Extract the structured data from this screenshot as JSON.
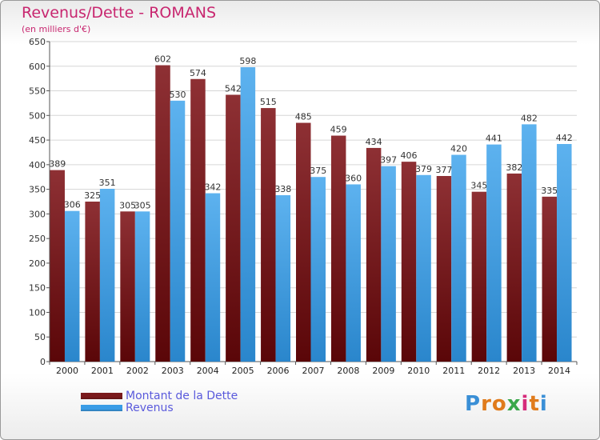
{
  "header": {
    "title": "Revenus/Dette - ROMANS",
    "subtitle": "(en milliers d'€)"
  },
  "chart_data": {
    "type": "bar",
    "title": "Revenus/Dette - ROMANS",
    "subtitle": "(en milliers d'€)",
    "categories": [
      "2000",
      "2001",
      "2002",
      "2003",
      "2004",
      "2005",
      "2006",
      "2007",
      "2008",
      "2009",
      "2010",
      "2011",
      "2012",
      "2013",
      "2014"
    ],
    "series": [
      {
        "name": "Montant de la Dette",
        "color": "#7a1a1c",
        "values": [
          389,
          325,
          305,
          602,
          574,
          542,
          515,
          485,
          459,
          434,
          406,
          377,
          345,
          382,
          335
        ]
      },
      {
        "name": "Revenus",
        "color": "#3a9ce6",
        "values": [
          306,
          351,
          305,
          530,
          342,
          598,
          338,
          375,
          360,
          397,
          379,
          420,
          441,
          482,
          442
        ]
      }
    ],
    "ylim": [
      0,
      650
    ],
    "yticks": [
      0,
      50,
      100,
      150,
      200,
      250,
      300,
      350,
      400,
      450,
      500,
      550,
      600,
      650
    ],
    "grid": true,
    "legend_position": "bottom-left"
  },
  "legend": {
    "items": [
      {
        "label": "Montant de la Dette",
        "color": "#7a1a1c"
      },
      {
        "label": "Revenus",
        "color": "#3a9ce6"
      }
    ]
  },
  "brand": {
    "letters": [
      "P",
      "r",
      "o",
      "x",
      "i",
      "t",
      "i"
    ],
    "colors": [
      "#3a8fd6",
      "#e07b1c",
      "#e07b1c",
      "#3aa84a",
      "#d62a7a",
      "#e07b1c",
      "#3a8fd6"
    ]
  }
}
